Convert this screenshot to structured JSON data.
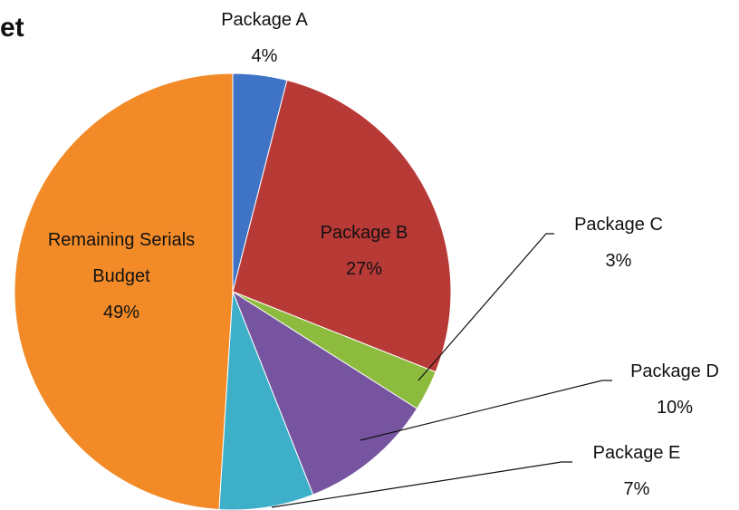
{
  "chart_data": {
    "type": "pie",
    "title": "et",
    "categories": [
      "Package A",
      "Package B",
      "Package C",
      "Package D",
      "Package E",
      "Remaining Serials Budget"
    ],
    "values": [
      4,
      27,
      3,
      10,
      7,
      49
    ],
    "value_labels": [
      "4%",
      "27%",
      "3%",
      "10%",
      "7%",
      "49%"
    ],
    "colors": [
      "#3f73c6",
      "#b83a37",
      "#8dbb3e",
      "#7654a0",
      "#3eafc8",
      "#f28b27"
    ]
  }
}
